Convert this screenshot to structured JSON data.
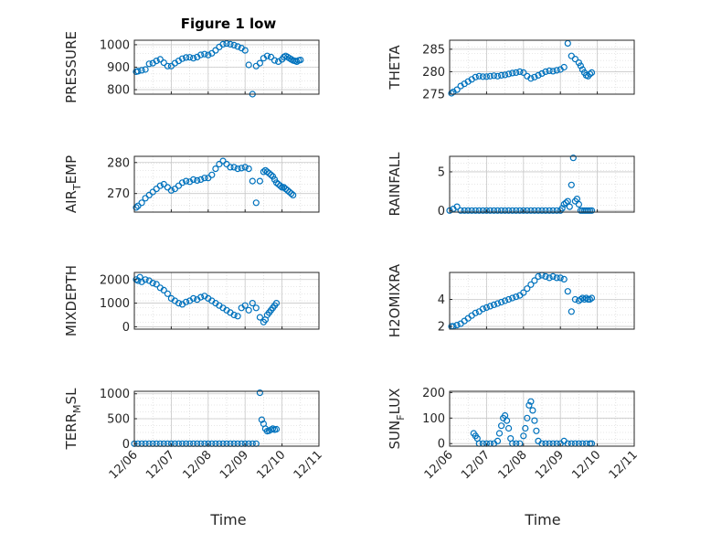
{
  "figure": {
    "title": "Figure 1 low",
    "marker_color": "#0072BD"
  },
  "chart_data": [
    {
      "type": "scatter",
      "title": "Figure 1 low",
      "ylabel": "PRESSURE",
      "ylim": [
        780,
        1020
      ],
      "yticks": [
        "800",
        "900",
        "1000"
      ],
      "ytick_values": [
        800,
        900,
        1000
      ],
      "xlim": [
        0,
        5
      ],
      "grid": true,
      "x": [
        0.05,
        0.1,
        0.2,
        0.3,
        0.4,
        0.5,
        0.6,
        0.7,
        0.8,
        0.9,
        1.0,
        1.1,
        1.2,
        1.3,
        1.4,
        1.5,
        1.6,
        1.7,
        1.8,
        1.9,
        2.0,
        2.1,
        2.2,
        2.3,
        2.4,
        2.5,
        2.6,
        2.7,
        2.8,
        2.9,
        3.0,
        3.1,
        3.2,
        3.3,
        3.4,
        3.5,
        3.6,
        3.7,
        3.8,
        3.9,
        4.0,
        4.05,
        4.1,
        4.15,
        4.2,
        4.25,
        4.3,
        4.35,
        4.4,
        4.45,
        4.5
      ],
      "y": [
        880,
        882,
        886,
        890,
        915,
        918,
        928,
        935,
        920,
        905,
        905,
        918,
        928,
        938,
        943,
        944,
        940,
        945,
        955,
        958,
        954,
        962,
        975,
        990,
        1002,
        1005,
        1002,
        998,
        992,
        985,
        975,
        910,
        780,
        905,
        918,
        940,
        950,
        945,
        930,
        925,
        935,
        945,
        950,
        945,
        940,
        935,
        930,
        928,
        925,
        930,
        932
      ]
    },
    {
      "type": "scatter",
      "ylabel": "THETA",
      "ylim": [
        275,
        287
      ],
      "yticks": [
        "275",
        "280",
        "285"
      ],
      "ytick_values": [
        275,
        280,
        285
      ],
      "xlim": [
        0,
        5
      ],
      "grid": true,
      "x": [
        0.05,
        0.1,
        0.2,
        0.3,
        0.4,
        0.5,
        0.6,
        0.7,
        0.8,
        0.9,
        1.0,
        1.1,
        1.2,
        1.3,
        1.4,
        1.5,
        1.6,
        1.7,
        1.8,
        1.9,
        2.0,
        2.1,
        2.2,
        2.3,
        2.4,
        2.5,
        2.6,
        2.7,
        2.8,
        2.9,
        3.0,
        3.1,
        3.2,
        3.3,
        3.4,
        3.5,
        3.55,
        3.6,
        3.65,
        3.7,
        3.75,
        3.8,
        3.85
      ],
      "y": [
        275.2,
        275.5,
        276.0,
        276.8,
        277.3,
        277.8,
        278.3,
        278.8,
        279.0,
        278.9,
        278.9,
        279.0,
        279.1,
        279.0,
        279.2,
        279.3,
        279.5,
        279.7,
        279.8,
        280.0,
        279.8,
        279.0,
        278.5,
        278.8,
        279.2,
        279.6,
        280.0,
        280.2,
        280.1,
        280.3,
        280.5,
        281.0,
        286.3,
        283.5,
        282.8,
        282.0,
        281.3,
        280.5,
        279.8,
        279.2,
        279.0,
        279.5,
        279.8
      ]
    },
    {
      "type": "scatter",
      "ylabel": "AIR_TEMP",
      "ylabel_parts": [
        "AIR",
        "T",
        "EMP"
      ],
      "ylim": [
        264,
        282
      ],
      "yticks": [
        "270",
        "280"
      ],
      "ytick_values": [
        270,
        280
      ],
      "xlim": [
        0,
        5
      ],
      "grid": true,
      "x": [
        0.05,
        0.1,
        0.2,
        0.3,
        0.4,
        0.5,
        0.6,
        0.7,
        0.8,
        0.9,
        1.0,
        1.1,
        1.2,
        1.3,
        1.4,
        1.5,
        1.6,
        1.7,
        1.8,
        1.9,
        2.0,
        2.1,
        2.2,
        2.3,
        2.4,
        2.5,
        2.6,
        2.7,
        2.8,
        2.9,
        3.0,
        3.1,
        3.2,
        3.3,
        3.4,
        3.5,
        3.55,
        3.6,
        3.65,
        3.7,
        3.75,
        3.8,
        3.85,
        3.9,
        3.95,
        4.0,
        4.05,
        4.1,
        4.15,
        4.2,
        4.25,
        4.3
      ],
      "y": [
        265.5,
        266,
        267,
        268.5,
        269.5,
        270.5,
        271.5,
        272.5,
        273,
        272,
        271,
        271.5,
        272.5,
        273.5,
        274,
        273.8,
        274.5,
        274.2,
        274.5,
        275,
        275,
        276,
        278,
        279.5,
        280.5,
        279.5,
        278.5,
        278.5,
        278,
        278.2,
        278.5,
        278,
        274,
        267,
        274,
        277,
        277.5,
        277,
        276.5,
        276,
        275.5,
        274.5,
        273.5,
        273,
        272.5,
        272,
        272,
        271.5,
        271,
        270.5,
        270,
        269.5
      ]
    },
    {
      "type": "scatter",
      "ylabel": "RAINFALL",
      "ylim": [
        -0.2,
        7
      ],
      "yticks": [
        "0",
        "5"
      ],
      "ytick_values": [
        0,
        5
      ],
      "xlim": [
        0,
        5
      ],
      "grid": true,
      "x": [
        0.0,
        0.1,
        0.2,
        0.3,
        0.4,
        0.5,
        0.6,
        0.7,
        0.8,
        0.9,
        1.0,
        1.1,
        1.2,
        1.3,
        1.4,
        1.5,
        1.6,
        1.7,
        1.8,
        1.9,
        2.0,
        2.1,
        2.2,
        2.3,
        2.4,
        2.5,
        2.6,
        2.7,
        2.8,
        2.9,
        3.0,
        3.05,
        3.1,
        3.15,
        3.2,
        3.25,
        3.3,
        3.35,
        3.4,
        3.45,
        3.5,
        3.55,
        3.6,
        3.65,
        3.7,
        3.75,
        3.8,
        3.85
      ],
      "y": [
        0,
        0.2,
        0.5,
        0,
        0,
        0,
        0,
        0,
        0,
        0,
        0,
        0,
        0,
        0,
        0,
        0,
        0,
        0,
        0,
        0,
        0,
        0,
        0,
        0,
        0,
        0,
        0,
        0,
        0,
        0,
        0,
        0.3,
        0.8,
        1.0,
        1.2,
        0.5,
        3.3,
        6.8,
        1.2,
        1.5,
        0.8,
        0,
        0,
        0,
        0,
        0,
        0,
        0
      ]
    },
    {
      "type": "scatter",
      "ylabel": "MIXDEPTH",
      "ylim": [
        -100,
        2300
      ],
      "yticks": [
        "0",
        "1000",
        "2000"
      ],
      "ytick_values": [
        0,
        1000,
        2000
      ],
      "xlim": [
        0,
        5
      ],
      "grid": true,
      "x": [
        0.05,
        0.1,
        0.15,
        0.2,
        0.3,
        0.4,
        0.5,
        0.6,
        0.7,
        0.8,
        0.9,
        1.0,
        1.1,
        1.2,
        1.3,
        1.4,
        1.5,
        1.6,
        1.7,
        1.8,
        1.9,
        2.0,
        2.1,
        2.2,
        2.3,
        2.4,
        2.5,
        2.6,
        2.7,
        2.8,
        2.9,
        3.0,
        3.1,
        3.2,
        3.3,
        3.4,
        3.5,
        3.55,
        3.6,
        3.65,
        3.7,
        3.75,
        3.8,
        3.85
      ],
      "y": [
        2000,
        1950,
        2100,
        1900,
        2000,
        1950,
        1850,
        1800,
        1650,
        1550,
        1400,
        1200,
        1100,
        1000,
        950,
        1050,
        1100,
        1200,
        1150,
        1250,
        1300,
        1200,
        1100,
        1000,
        900,
        800,
        700,
        600,
        500,
        450,
        800,
        900,
        700,
        1000,
        800,
        400,
        200,
        300,
        500,
        600,
        700,
        800,
        900,
        1000
      ]
    },
    {
      "type": "scatter",
      "ylabel": "H2OMIXRA",
      "ylim": [
        1.8,
        6
      ],
      "yticks": [
        "2",
        "4"
      ],
      "ytick_values": [
        2,
        4
      ],
      "xlim": [
        0,
        5
      ],
      "grid": true,
      "x": [
        0.05,
        0.1,
        0.2,
        0.3,
        0.4,
        0.5,
        0.6,
        0.7,
        0.8,
        0.9,
        1.0,
        1.1,
        1.2,
        1.3,
        1.4,
        1.5,
        1.6,
        1.7,
        1.8,
        1.9,
        2.0,
        2.1,
        2.2,
        2.3,
        2.4,
        2.5,
        2.6,
        2.7,
        2.8,
        2.9,
        3.0,
        3.1,
        3.2,
        3.3,
        3.4,
        3.5,
        3.55,
        3.6,
        3.65,
        3.7,
        3.75,
        3.8,
        3.85
      ],
      "y": [
        2.0,
        2.0,
        2.1,
        2.2,
        2.4,
        2.6,
        2.8,
        3.0,
        3.1,
        3.3,
        3.4,
        3.5,
        3.6,
        3.7,
        3.8,
        3.9,
        4.0,
        4.1,
        4.2,
        4.3,
        4.5,
        4.8,
        5.1,
        5.4,
        5.7,
        5.8,
        5.7,
        5.6,
        5.7,
        5.6,
        5.6,
        5.5,
        4.6,
        3.1,
        4.0,
        3.9,
        4.0,
        4.1,
        4.0,
        4.1,
        4.0,
        4.0,
        4.1
      ]
    },
    {
      "type": "scatter",
      "ylabel": "TERR_MSL",
      "ylabel_parts": [
        "TERR",
        "M",
        "SL"
      ],
      "ylim": [
        -50,
        1050
      ],
      "yticks": [
        "0",
        "500",
        "1000"
      ],
      "ytick_values": [
        0,
        500,
        1000
      ],
      "xlim": [
        0,
        5
      ],
      "grid": true,
      "x": [
        0.0,
        0.1,
        0.2,
        0.3,
        0.4,
        0.5,
        0.6,
        0.7,
        0.8,
        0.9,
        1.0,
        1.1,
        1.2,
        1.3,
        1.4,
        1.5,
        1.6,
        1.7,
        1.8,
        1.9,
        2.0,
        2.1,
        2.2,
        2.3,
        2.4,
        2.5,
        2.6,
        2.7,
        2.8,
        2.9,
        3.0,
        3.1,
        3.2,
        3.3,
        3.4,
        3.45,
        3.5,
        3.55,
        3.6,
        3.65,
        3.7,
        3.75,
        3.8,
        3.85
      ],
      "y": [
        0,
        0,
        0,
        0,
        0,
        0,
        0,
        0,
        0,
        0,
        0,
        0,
        0,
        0,
        0,
        0,
        0,
        0,
        0,
        0,
        0,
        0,
        0,
        0,
        0,
        0,
        0,
        0,
        0,
        0,
        0,
        0,
        0,
        0,
        1020,
        480,
        400,
        300,
        250,
        260,
        280,
        300,
        280,
        290
      ]
    },
    {
      "type": "scatter",
      "ylabel": "SUN_FLUX",
      "ylabel_parts": [
        "SUN",
        "F",
        "LUX"
      ],
      "ylim": [
        -10,
        205
      ],
      "yticks": [
        "0",
        "100",
        "200"
      ],
      "ytick_values": [
        0,
        100,
        200
      ],
      "xlim": [
        0,
        5
      ],
      "grid": true,
      "xticks": [
        "12/06",
        "12/07",
        "12/08",
        "12/09",
        "12/10",
        "12/11"
      ],
      "xtick_values": [
        0,
        1,
        2,
        3,
        4,
        5
      ],
      "x": [
        0.65,
        0.7,
        0.75,
        0.8,
        0.9,
        1.0,
        1.1,
        1.2,
        1.3,
        1.35,
        1.4,
        1.45,
        1.5,
        1.55,
        1.6,
        1.65,
        1.7,
        1.8,
        1.9,
        2.0,
        2.05,
        2.1,
        2.15,
        2.2,
        2.25,
        2.3,
        2.35,
        2.4,
        2.5,
        2.6,
        2.7,
        2.8,
        2.9,
        3.0,
        3.1,
        3.2,
        3.3,
        3.4,
        3.5,
        3.6,
        3.7,
        3.8,
        3.85
      ],
      "y": [
        40,
        30,
        20,
        0,
        0,
        0,
        0,
        0,
        10,
        40,
        70,
        100,
        110,
        90,
        60,
        20,
        0,
        0,
        0,
        30,
        60,
        100,
        150,
        165,
        130,
        90,
        50,
        10,
        0,
        0,
        0,
        0,
        0,
        0,
        10,
        0,
        0,
        0,
        0,
        0,
        0,
        0,
        0
      ]
    }
  ],
  "xaxis_label": "Time"
}
